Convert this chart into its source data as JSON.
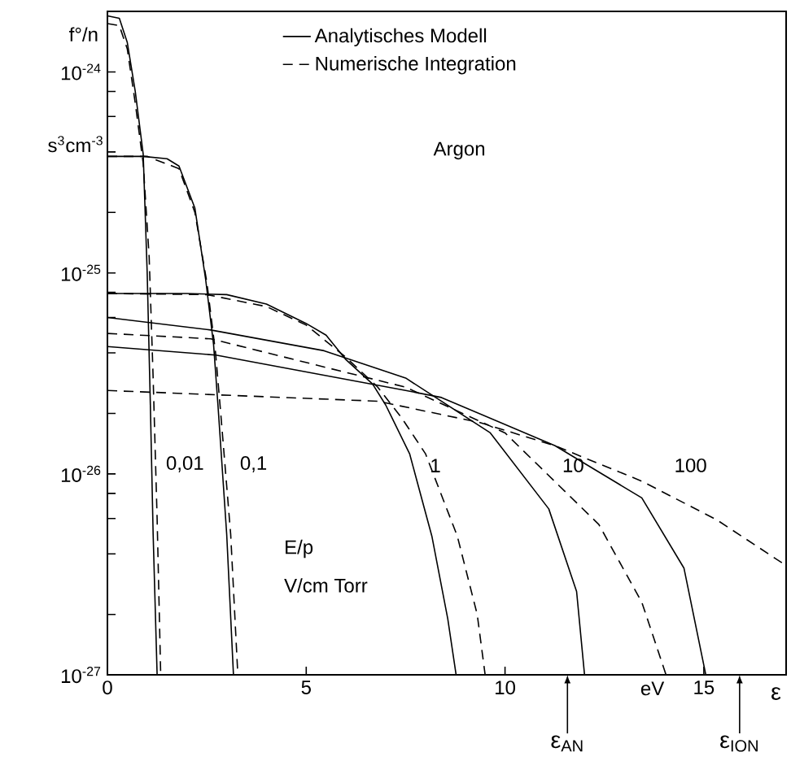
{
  "chart_data": {
    "type": "line",
    "xlabel": "ε",
    "ylabel": "f°/n",
    "log": "y",
    "xlim": [
      0,
      17.07
    ],
    "ylim": [
      1e-27,
      2e-24
    ],
    "xticks": [
      0,
      5,
      10,
      15
    ],
    "yticks": [
      {
        "value": 1e-27,
        "label": "10$^{-27}$"
      },
      {
        "value": 2e-27,
        "label": null
      },
      {
        "value": 4e-27,
        "label": null
      },
      {
        "value": 6e-27,
        "label": null
      },
      {
        "value": 8e-27,
        "label": null
      },
      {
        "value": 1e-26,
        "label": "10$^{-26}$"
      },
      {
        "value": 2e-26,
        "label": null
      },
      {
        "value": 4e-26,
        "label": null
      },
      {
        "value": 6e-26,
        "label": null
      },
      {
        "value": 8e-26,
        "label": null
      },
      {
        "value": 1e-25,
        "label": "10$^{-25}$"
      },
      {
        "value": 2e-25,
        "label": null
      },
      {
        "value": 4e-25,
        "label": null
      },
      {
        "value": 6e-25,
        "label": null
      },
      {
        "value": 8e-25,
        "label": null
      },
      {
        "value": 1e-24,
        "label": "10$^{-24}$"
      }
    ],
    "legend": "top",
    "grid": false,
    "marker": "none",
    "series": [
      {
        "name": "Analytisches Modell",
        "color": "#000000",
        "line_style": "solid",
        "x": [
          0,
          0.3,
          0.5,
          0.7,
          0.9,
          1.0,
          1.08,
          1.15,
          1.25
        ],
        "values": [
          1.9e-24,
          1.85e-24,
          1.4e-24,
          8e-25,
          3.9e-25,
          1e-25,
          2.2e-26,
          5e-27,
          1e-27
        ]
      },
      {
        "name": "Numerische Integration",
        "color": "#000000",
        "line_style": "dashed",
        "x": [
          0,
          0.3,
          0.5,
          0.7,
          0.9,
          1.05,
          1.15,
          1.25,
          1.34
        ],
        "values": [
          1.74e-24,
          1.7e-24,
          1.3e-24,
          7e-25,
          3.5e-25,
          1.2e-25,
          3e-26,
          6e-27,
          1e-27
        ]
      },
      {
        "color": "#000000",
        "line_style": "solid",
        "x": [
          0,
          0.9,
          1.5,
          1.8,
          2.2,
          2.47,
          2.67,
          2.78,
          3.0,
          3.17
        ],
        "values": [
          3.8e-25,
          3.8e-25,
          3.7e-25,
          3.4e-25,
          2.1e-25,
          9.3e-26,
          4.4e-26,
          2.2e-26,
          5e-27,
          1e-27
        ]
      },
      {
        "color": "#000000",
        "line_style": "dashed",
        "x": [
          0,
          1.0,
          1.8,
          2.2,
          2.5,
          2.72,
          2.85,
          3.1,
          3.28
        ],
        "values": [
          3.8e-25,
          3.8e-25,
          3.3e-25,
          2e-25,
          9e-26,
          4e-26,
          2e-26,
          5e-27,
          1e-27
        ]
      },
      {
        "color": "#000000",
        "line_style": "solid",
        "x": [
          0,
          2,
          3,
          4,
          5,
          5.5,
          6,
          6.67,
          7.0,
          7.6,
          8.16,
          8.56,
          8.77
        ],
        "values": [
          7.9e-26,
          7.9e-26,
          7.8e-26,
          7e-26,
          5.6e-26,
          4.9e-26,
          3.7e-26,
          2.8e-26,
          2.2e-26,
          1.26e-26,
          4.9e-27,
          1.9e-27,
          1e-27
        ]
      },
      {
        "color": "#000000",
        "line_style": "dashed",
        "x": [
          0,
          2.5,
          4,
          5,
          6,
          6.8,
          7.4,
          8.0,
          8.8,
          9.3,
          9.5
        ],
        "values": [
          7.9e-26,
          7.8e-26,
          6.8e-26,
          5.5e-26,
          3.8e-26,
          2.7e-26,
          1.9e-26,
          1.26e-26,
          4.9e-27,
          2e-27,
          1e-27
        ]
      },
      {
        "color": "#000000",
        "line_style": "solid",
        "x": [
          0,
          2.6,
          5.45,
          7.5,
          9.63,
          11.1,
          11.8,
          12.0
        ],
        "values": [
          6e-26,
          5.2e-26,
          4.1e-26,
          3e-26,
          1.6e-26,
          6.7e-27,
          2.6e-27,
          1e-27
        ]
      },
      {
        "color": "#000000",
        "line_style": "dashed",
        "x": [
          0,
          2.6,
          7.5,
          10.0,
          12.36,
          13.44,
          14.05
        ],
        "values": [
          5e-26,
          4.7e-26,
          2.7e-26,
          1.6e-26,
          5.6e-27,
          2.3e-27,
          1e-27
        ]
      },
      {
        "color": "#000000",
        "line_style": "solid",
        "x": [
          0,
          2.73,
          7.5,
          8.4,
          11.26,
          13.44,
          14.5,
          15.05
        ],
        "values": [
          4.3e-26,
          3.9e-26,
          2.6e-26,
          2.4e-26,
          1.38e-26,
          7.6e-27,
          3.4e-27,
          1e-27
        ]
      },
      {
        "color": "#000000",
        "line_style": "dashed",
        "x": [
          0,
          6.8,
          9.37,
          11.26,
          13.44,
          15.33,
          17.07
        ],
        "values": [
          2.6e-26,
          2.3e-26,
          1.8e-26,
          1.38e-26,
          9.2e-27,
          5.9e-27,
          3.5e-27
        ]
      }
    ],
    "ref_lines": [
      {
        "axis": "x",
        "value": 11.57,
        "label": "ε$_{AN}$"
      },
      {
        "axis": "x",
        "value": 15.9,
        "label": "ε$_{ION}$"
      }
    ],
    "annotations": [
      "Argon",
      "E/p",
      "V/cm  Torr",
      "eV",
      "s$^{3}$cm$^{-3}$",
      "0,01",
      "0,1",
      "1",
      "10",
      "100"
    ]
  }
}
